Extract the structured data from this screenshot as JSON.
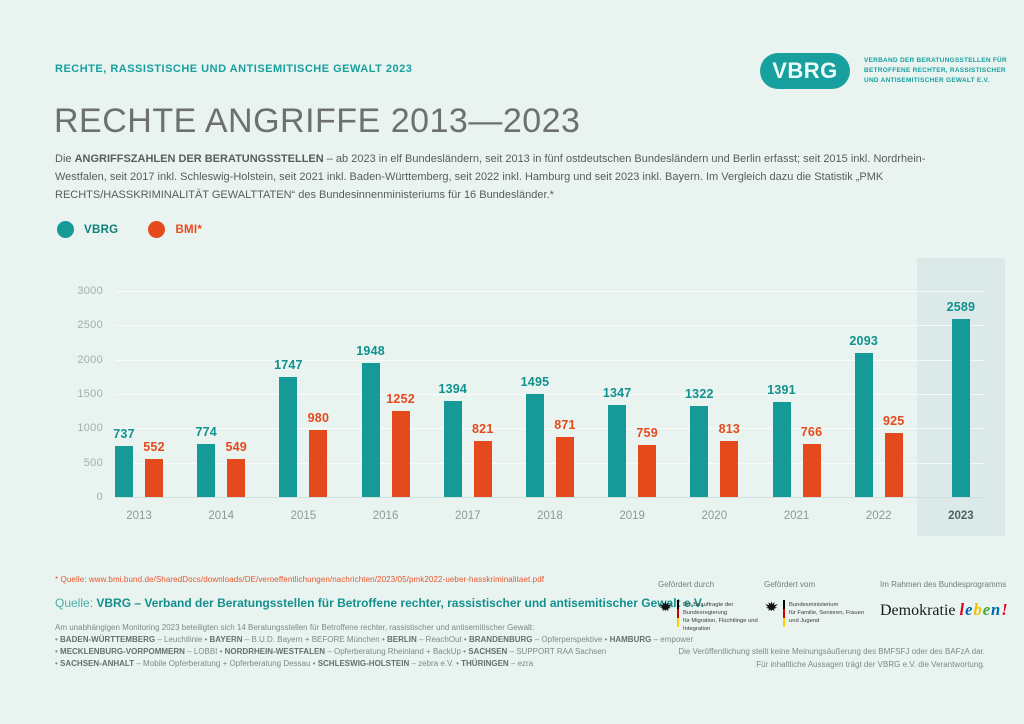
{
  "header": {
    "eyebrow": "RECHTE, RASSISTISCHE UND ANTISEMITISCHE GEWALT 2023",
    "logo_text": "VBRG",
    "logo_subtitle_lines": [
      "VERBAND DER BERATUNGSSTELLEN FÜR",
      "BETROFFENE RECHTER, RASSISTISCHER",
      "UND ANTISEMITISCHER GEWALT E.V."
    ]
  },
  "title": "RECHTE ANGRIFFE 2013—2023",
  "intro": [
    {
      "t": "Die ",
      "b": 0
    },
    {
      "t": "ANGRIFFSZAHLEN DER BERATUNGSSTELLEN",
      "b": 1
    },
    {
      "t": " – ab 2023 in elf Bundesländern, seit 2013 in fünf ostdeutschen Bundesländern und Berlin erfasst; seit 2015 inkl. Nordrhein-Westfalen, seit 2017 inkl. Schleswig-Holstein, seit 2021 inkl. Baden-Württemberg, seit 2022 inkl. Hamburg und seit 2023 inkl. Bayern. Im Vergleich dazu die Statistik „PMK RECHTS/HASSKRIMINALITÄT GEWALTTATEN“ des Bundesinnenministeriums für 16 Bundesländer.*",
      "b": 0
    }
  ],
  "chart_data": {
    "type": "bar",
    "title": "RECHTE ANGRIFFE 2013—2023",
    "categories": [
      "2013",
      "2014",
      "2015",
      "2016",
      "2017",
      "2018",
      "2019",
      "2020",
      "2021",
      "2022",
      "2023"
    ],
    "series": [
      {
        "name": "VBRG",
        "color": "#159a97",
        "values": [
          737,
          774,
          1747,
          1948,
          1394,
          1495,
          1347,
          1322,
          1391,
          2093,
          2589
        ]
      },
      {
        "name": "BMI*",
        "color": "#e54a1c",
        "values": [
          552,
          549,
          980,
          1252,
          821,
          871,
          759,
          813,
          766,
          925,
          null
        ]
      }
    ],
    "xlabel": "",
    "ylabel": "",
    "ylim": [
      0,
      3000
    ],
    "y_ticks": [
      0,
      500,
      1000,
      1500,
      2000,
      2500,
      3000
    ],
    "grid": true,
    "legend_position": "top-left",
    "highlight_category": "2023",
    "highlight_band_color": "#dbeae8"
  },
  "footnote_source": "* Quelle: www.bmi.bund.de/SharedDocs/downloads/DE/veroeffentlichungen/nachrichten/2023/05/pmk2022-ueber-hasskriminalitaet.pdf",
  "quelle": {
    "prefix": "Quelle: ",
    "text": "VBRG – Verband der Beratungsstellen für Betroffene rechter, rassistischer und antisemitischer Gewalt e.V."
  },
  "smallprint": [
    [
      {
        "t": "Am unabhängigen Monitoring 2023 beteiligten sich 14 Beratungsstellen für Betroffene rechter, rassistischer und antisemitischer Gewalt:",
        "b": 0
      }
    ],
    [
      {
        "t": "• ",
        "b": 0
      },
      {
        "t": "BADEN-WÜRTTEMBERG",
        "b": 1
      },
      {
        "t": " – Leuchtlinie • ",
        "b": 0
      },
      {
        "t": "BAYERN",
        "b": 1
      },
      {
        "t": " – B.U.D. Bayern + BEFORE München • ",
        "b": 0
      },
      {
        "t": "BERLIN",
        "b": 1
      },
      {
        "t": " – ReachOut • ",
        "b": 0
      },
      {
        "t": "BRANDENBURG",
        "b": 1
      },
      {
        "t": " – Opferperspektive • ",
        "b": 0
      },
      {
        "t": "HAMBURG",
        "b": 1
      },
      {
        "t": " – empower",
        "b": 0
      }
    ],
    [
      {
        "t": "• ",
        "b": 0
      },
      {
        "t": "MECKLENBURG-VORPOMMERN",
        "b": 1
      },
      {
        "t": " – LOBBI • ",
        "b": 0
      },
      {
        "t": "NORDRHEIN-WESTFALEN",
        "b": 1
      },
      {
        "t": " – Opferberatung Rheinland + BackUp • ",
        "b": 0
      },
      {
        "t": "SACHSEN",
        "b": 1
      },
      {
        "t": " – SUPPORT RAA Sachsen",
        "b": 0
      }
    ],
    [
      {
        "t": "• ",
        "b": 0
      },
      {
        "t": "SACHSEN-ANHALT",
        "b": 1
      },
      {
        "t": " – Mobile Opferberatung + Opferberatung Dessau • ",
        "b": 0
      },
      {
        "t": "SCHLESWIG-HOLSTEIN",
        "b": 1
      },
      {
        "t": " – zebra e.V. • ",
        "b": 0
      },
      {
        "t": "THÜRINGEN",
        "b": 1
      },
      {
        "t": " – ezra",
        "b": 0
      }
    ]
  ],
  "funding": {
    "col1": {
      "label": "Gefördert durch",
      "org_lines": [
        "Die Beauftragte der Bundesregierung",
        "für Migration, Flüchtlinge und",
        "Integration"
      ]
    },
    "col2": {
      "label": "Gefördert vom",
      "org_lines": [
        "Bundesministerium",
        "für Familie, Senioren, Frauen",
        "und Jugend"
      ]
    },
    "col3": {
      "label": "Im Rahmen des Bundesprogramms",
      "program_word1": "Demokratie ",
      "program_word2_letters": [
        {
          "ch": "l",
          "color": "#e2001a"
        },
        {
          "ch": "e",
          "color": "#0066b3"
        },
        {
          "ch": "b",
          "color": "#f2bd00"
        },
        {
          "ch": "e",
          "color": "#3fa535"
        },
        {
          "ch": "n",
          "color": "#0066b3"
        },
        {
          "ch": "!",
          "color": "#e2001a"
        }
      ]
    }
  },
  "disclaimer_lines": [
    "Die Veröffentlichung stellt keine Meinungsäußerung des BMFSFJ oder des BAFzA dar.",
    "Für inhaltliche Aussagen trägt der VBRG e.V. die Verantwortung."
  ]
}
